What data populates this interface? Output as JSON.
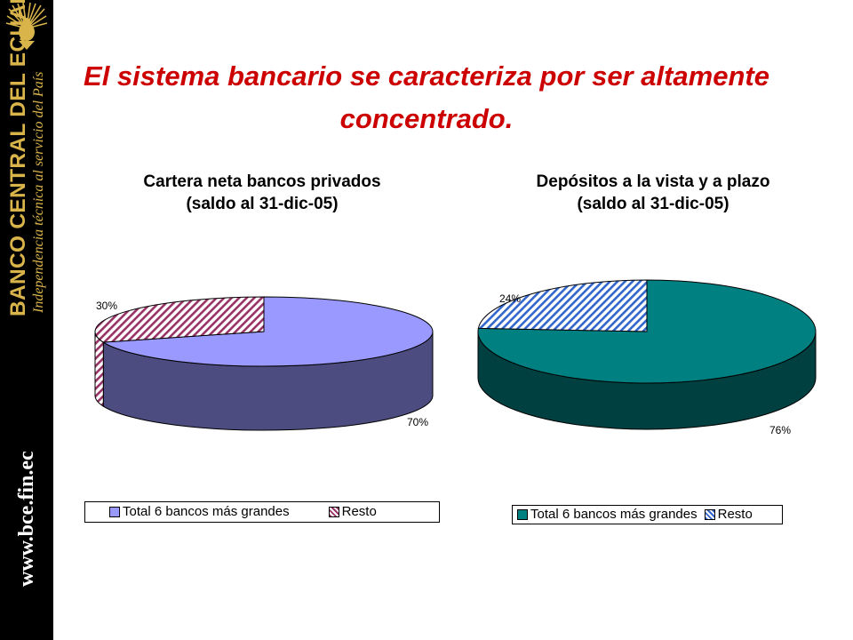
{
  "sidebar": {
    "bank_name": "BANCO CENTRAL DEL ECUADOR",
    "tagline": "Independencia técnica al servicio del País",
    "website": "www.bce.fin.ec",
    "logo_icon": "condor-crest-icon",
    "text_color": "#d9b44a"
  },
  "slide": {
    "title": "El sistema bancario se caracteriza por ser altamente concentrado.",
    "title_color": "#cc0000"
  },
  "chart_data": [
    {
      "type": "pie",
      "style": "3d",
      "title": "Cartera neta bancos privados\n(saldo al 31-dic-05)",
      "title_lines": [
        "Cartera neta bancos privados",
        "(saldo al 31-dic-05)"
      ],
      "slices": [
        {
          "label": "Total 6 bancos más grandes",
          "value": 70,
          "data_label": "70%",
          "color": "#9999ff",
          "side_color": "#4c4c80",
          "pattern": "solid"
        },
        {
          "label": "Resto",
          "value": 30,
          "data_label": "30%",
          "color": "#993366",
          "pattern": "diagonal-hatch"
        }
      ],
      "legend": [
        "Total 6 bancos más grandes",
        "Resto"
      ],
      "legend_position": "bottom"
    },
    {
      "type": "pie",
      "style": "3d",
      "title": "Depósitos a la vista y a plazo\n(saldo al 31-dic-05)",
      "title_lines": [
        "Depósitos a la vista y a plazo",
        "(saldo al 31-dic-05)"
      ],
      "slices": [
        {
          "label": "Total 6 bancos más grandes",
          "value": 76,
          "data_label": "76%",
          "color": "#008080",
          "side_color": "#004040",
          "pattern": "solid"
        },
        {
          "label": "Resto",
          "value": 24,
          "data_label": "24%",
          "color": "#3366cc",
          "pattern": "diagonal-hatch"
        }
      ],
      "legend": [
        "Total 6 bancos más grandes",
        "Resto"
      ],
      "legend_position": "bottom"
    }
  ]
}
